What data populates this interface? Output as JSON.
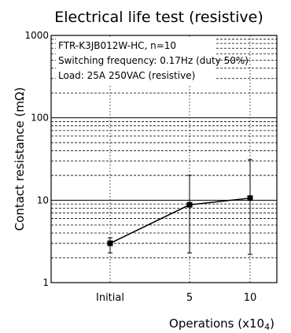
{
  "chart_data": {
    "type": "line",
    "title": "Electrical life test (resistive)",
    "xlabel": "Operations (x10",
    "xlabel_exponent": "4",
    "xlabel_close": ")",
    "ylabel": "Contact resistance (mΩ)",
    "yscale": "log",
    "ylim": [
      1,
      1000
    ],
    "grid": true,
    "categories": [
      "Initial",
      "5",
      "10"
    ],
    "yticks": [
      "1000",
      "100",
      "10",
      "1"
    ],
    "annotations": [
      "FTR-K3JB012W-HC, n=10",
      "Switching frequency: 0.17Hz (duty 50%)",
      "Load: 25A 250VAC (resistive)"
    ],
    "series": [
      {
        "values": [
          3.0,
          8.8,
          10.6
        ],
        "min": [
          2.3,
          2.3,
          2.2
        ],
        "max": [
          3.5,
          20,
          31
        ]
      }
    ],
    "colors": {
      "line": "#000000",
      "grid": "#000000"
    }
  }
}
